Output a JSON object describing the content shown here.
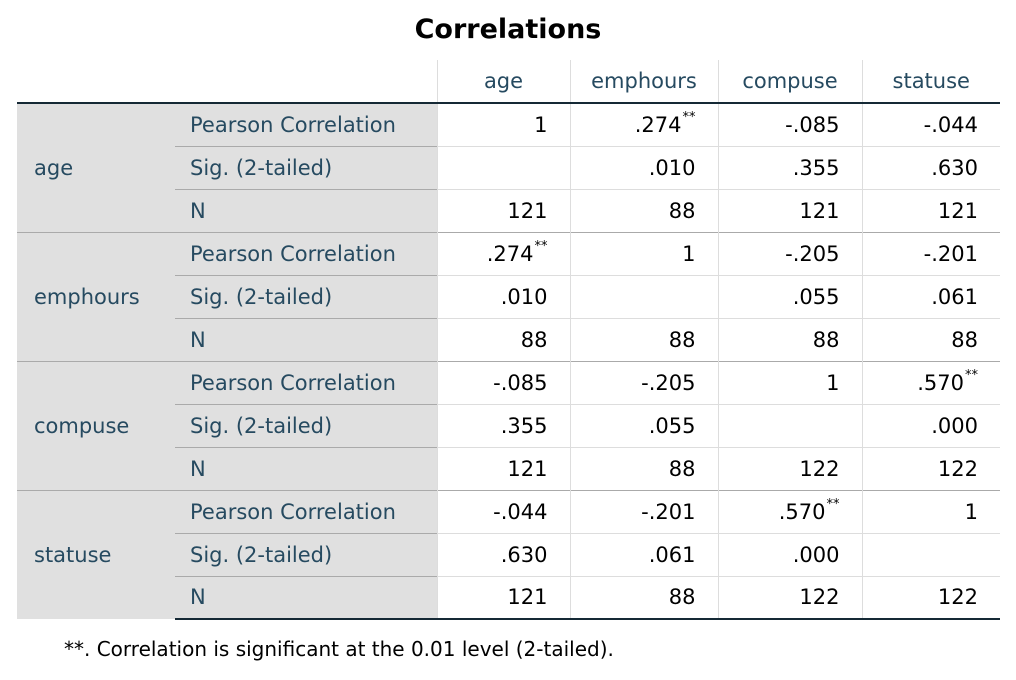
{
  "title": "Correlations",
  "columns": [
    "age",
    "emphours",
    "compuse",
    "statuse"
  ],
  "stat_labels": [
    "Pearson Correlation",
    "Sig. (2-tailed)",
    "N"
  ],
  "rows": [
    {
      "var": "age",
      "r": [
        "1",
        ".274**",
        "-.085",
        "-.044"
      ],
      "sig": [
        "",
        ".010",
        ".355",
        ".630"
      ],
      "n": [
        "121",
        "88",
        "121",
        "121"
      ]
    },
    {
      "var": "emphours",
      "r": [
        ".274**",
        "1",
        "-.205",
        "-.201"
      ],
      "sig": [
        ".010",
        "",
        ".055",
        ".061"
      ],
      "n": [
        "88",
        "88",
        "88",
        "88"
      ]
    },
    {
      "var": "compuse",
      "r": [
        "-.085",
        "-.205",
        "1",
        ".570**"
      ],
      "sig": [
        ".355",
        ".055",
        "",
        ".000"
      ],
      "n": [
        "121",
        "88",
        "122",
        "122"
      ]
    },
    {
      "var": "statuse",
      "r": [
        "-.044",
        "-.201",
        ".570**",
        "1"
      ],
      "sig": [
        ".630",
        ".061",
        ".000",
        ""
      ],
      "n": [
        "121",
        "88",
        "122",
        "122"
      ]
    }
  ],
  "footnote": "**. Correlation is significant at the 0.01 level (2-tailed)."
}
